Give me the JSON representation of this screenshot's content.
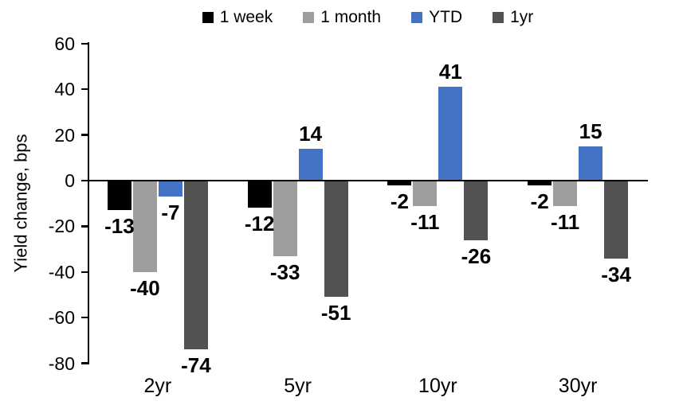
{
  "chart_data": {
    "type": "bar",
    "ylabel": "Yield change, bps",
    "categories": [
      "2yr",
      "5yr",
      "10yr",
      "30yr"
    ],
    "series": [
      {
        "name": "1 week",
        "color": "#000000",
        "values": [
          -13,
          -12,
          -2,
          -2
        ]
      },
      {
        "name": "1 month",
        "color": "#9E9E9E",
        "values": [
          -40,
          -33,
          -11,
          -11
        ]
      },
      {
        "name": "YTD",
        "color": "#4472C4",
        "values": [
          -7,
          14,
          41,
          15
        ]
      },
      {
        "name": "1yr",
        "color": "#525252",
        "values": [
          -74,
          -51,
          -26,
          -34
        ]
      }
    ],
    "ylim": [
      -80,
      60
    ],
    "yticks": [
      60,
      40,
      20,
      0,
      -20,
      -40,
      -60,
      -80
    ],
    "grid": false,
    "legend_position": "top",
    "data_labels": "outside end",
    "axis_color": "#000000",
    "background_color": "#ffffff"
  }
}
